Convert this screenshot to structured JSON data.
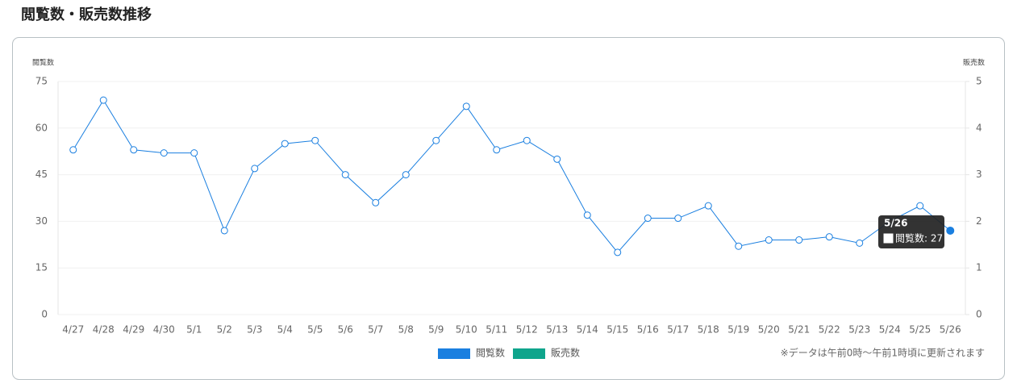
{
  "chart_data": {
    "type": "line",
    "title": "閲覧数・販売数推移",
    "ylabel": "閲覧数",
    "y2label": "販売数",
    "categories": [
      "4/27",
      "4/28",
      "4/29",
      "4/30",
      "5/1",
      "5/2",
      "5/3",
      "5/4",
      "5/5",
      "5/6",
      "5/7",
      "5/8",
      "5/9",
      "5/10",
      "5/11",
      "5/12",
      "5/13",
      "5/14",
      "5/15",
      "5/16",
      "5/17",
      "5/18",
      "5/19",
      "5/20",
      "5/21",
      "5/22",
      "5/23",
      "5/24",
      "5/25",
      "5/26"
    ],
    "series": [
      {
        "name": "閲覧数",
        "color": "#1a7fe0",
        "values": [
          53,
          69,
          53,
          52,
          52,
          27,
          47,
          55,
          56,
          45,
          36,
          45,
          56,
          67,
          53,
          56,
          50,
          32,
          20,
          31,
          31,
          35,
          22,
          24,
          24,
          25,
          23,
          30,
          35,
          27
        ]
      },
      {
        "name": "販売数",
        "color": "#0fa58c",
        "axis": "y2",
        "values": [
          null,
          null,
          null,
          null,
          null,
          null,
          null,
          null,
          null,
          null,
          null,
          null,
          null,
          null,
          null,
          null,
          null,
          null,
          null,
          null,
          null,
          null,
          null,
          null,
          null,
          null,
          null,
          null,
          null,
          null
        ]
      }
    ],
    "ylim": [
      0,
      75
    ],
    "yticks": [
      0,
      15,
      30,
      45,
      60,
      75
    ],
    "y2lim": [
      0,
      5
    ],
    "y2ticks": [
      0,
      1,
      2,
      3,
      4,
      5
    ],
    "grid": true,
    "legend": "bottom",
    "tooltip": {
      "title": "5/26",
      "text": "閲覧数: 27"
    },
    "note": "※データは午前0時〜午前1時頃に更新されます"
  }
}
